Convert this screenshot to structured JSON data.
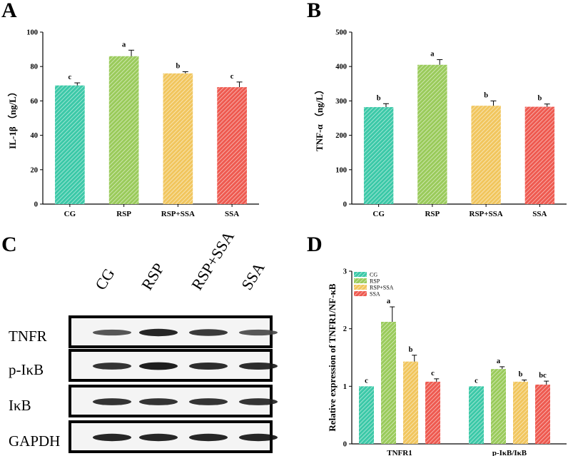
{
  "colors": [
    "#3CC9A8",
    "#9ACB5B",
    "#F1C65E",
    "#EE5A50"
  ],
  "chart_data": [
    {
      "panel": "A",
      "type": "bar",
      "categories": [
        "CG",
        "RSP",
        "RSP+SSA",
        "SSA"
      ],
      "values": [
        69,
        86,
        76,
        68
      ],
      "errors": [
        1.5,
        3.5,
        1.0,
        3.0
      ],
      "significance": [
        "c",
        "a",
        "b",
        "c"
      ],
      "ylabel": "IL-1β （ng/L）",
      "ylim": [
        0,
        100
      ],
      "yticks": [
        0,
        20,
        40,
        60,
        80,
        100
      ]
    },
    {
      "panel": "B",
      "type": "bar",
      "categories": [
        "CG",
        "RSP",
        "RSP+SSA",
        "SSA"
      ],
      "values": [
        282,
        405,
        286,
        283
      ],
      "errors": [
        10,
        15,
        14,
        8
      ],
      "significance": [
        "b",
        "a",
        "b",
        "b"
      ],
      "ylabel": "TNF-α （ng/L）",
      "ylim": [
        0,
        500
      ],
      "yticks": [
        0,
        100,
        200,
        300,
        400,
        500
      ]
    },
    {
      "panel": "D",
      "type": "bar",
      "categories": [
        "TNFR1",
        "p-IκB/IκB"
      ],
      "series": [
        {
          "name": "CG",
          "values": [
            1.0,
            1.0
          ],
          "errors": [
            0,
            0
          ],
          "significance": [
            "c",
            "c"
          ]
        },
        {
          "name": "RSP",
          "values": [
            2.12,
            1.3
          ],
          "errors": [
            0.26,
            0.04
          ],
          "significance": [
            "a",
            "a"
          ]
        },
        {
          "name": "RSP+SSA",
          "values": [
            1.43,
            1.08
          ],
          "errors": [
            0.11,
            0.03
          ],
          "significance": [
            "b",
            "b"
          ]
        },
        {
          "name": "SSA",
          "values": [
            1.08,
            1.03
          ],
          "errors": [
            0.05,
            0.06
          ],
          "significance": [
            "c",
            "bc"
          ]
        }
      ],
      "ylabel": "Relative expression of TNFR1/NF-κB",
      "ylim": [
        0,
        3
      ],
      "yticks": [
        0,
        1,
        2,
        3
      ],
      "legend": [
        "CG",
        "RSP",
        "RSP+SSA",
        "SSA"
      ]
    }
  ],
  "blot": {
    "panel": "C",
    "lanes": [
      "CG",
      "RSP",
      "RSP+SSA",
      "SSA"
    ],
    "rows": [
      {
        "label": "TNFR",
        "intensity": [
          0.55,
          0.9,
          0.75,
          0.55
        ]
      },
      {
        "label": "p-IκB",
        "intensity": [
          0.8,
          0.95,
          0.85,
          0.85
        ]
      },
      {
        "label": "IκB",
        "intensity": [
          0.8,
          0.8,
          0.8,
          0.8
        ]
      },
      {
        "label": "GAPDH",
        "intensity": [
          0.9,
          0.9,
          0.9,
          0.9
        ]
      }
    ]
  }
}
